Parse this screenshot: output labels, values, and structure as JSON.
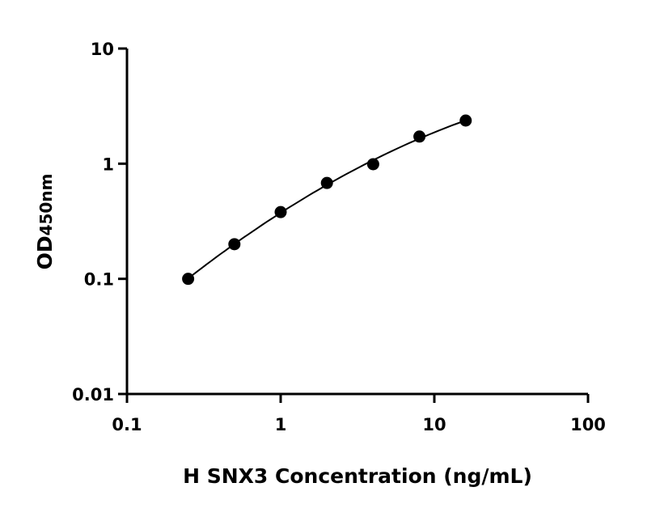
{
  "chart_data": {
    "type": "scatter",
    "title": "",
    "xlabel": "H SNX3 Concentration (ng/mL)",
    "ylabel_main": "OD",
    "ylabel_sub": "450nm",
    "x_scale": "log",
    "y_scale": "log",
    "xlim": [
      0.1,
      100
    ],
    "ylim": [
      0.01,
      10
    ],
    "x_ticks": [
      "0.1",
      "1",
      "10",
      "100"
    ],
    "y_ticks": [
      "0.01",
      "0.1",
      "1",
      "10"
    ],
    "grid": false,
    "fit_curve": true,
    "points": [
      {
        "x": 0.25,
        "y": 0.1
      },
      {
        "x": 0.5,
        "y": 0.2
      },
      {
        "x": 1,
        "y": 0.38
      },
      {
        "x": 2,
        "y": 0.68
      },
      {
        "x": 4,
        "y": 0.99
      },
      {
        "x": 8,
        "y": 1.72
      },
      {
        "x": 16,
        "y": 2.37
      }
    ],
    "colors": {
      "points": "#000000",
      "axes": "#000000"
    }
  }
}
